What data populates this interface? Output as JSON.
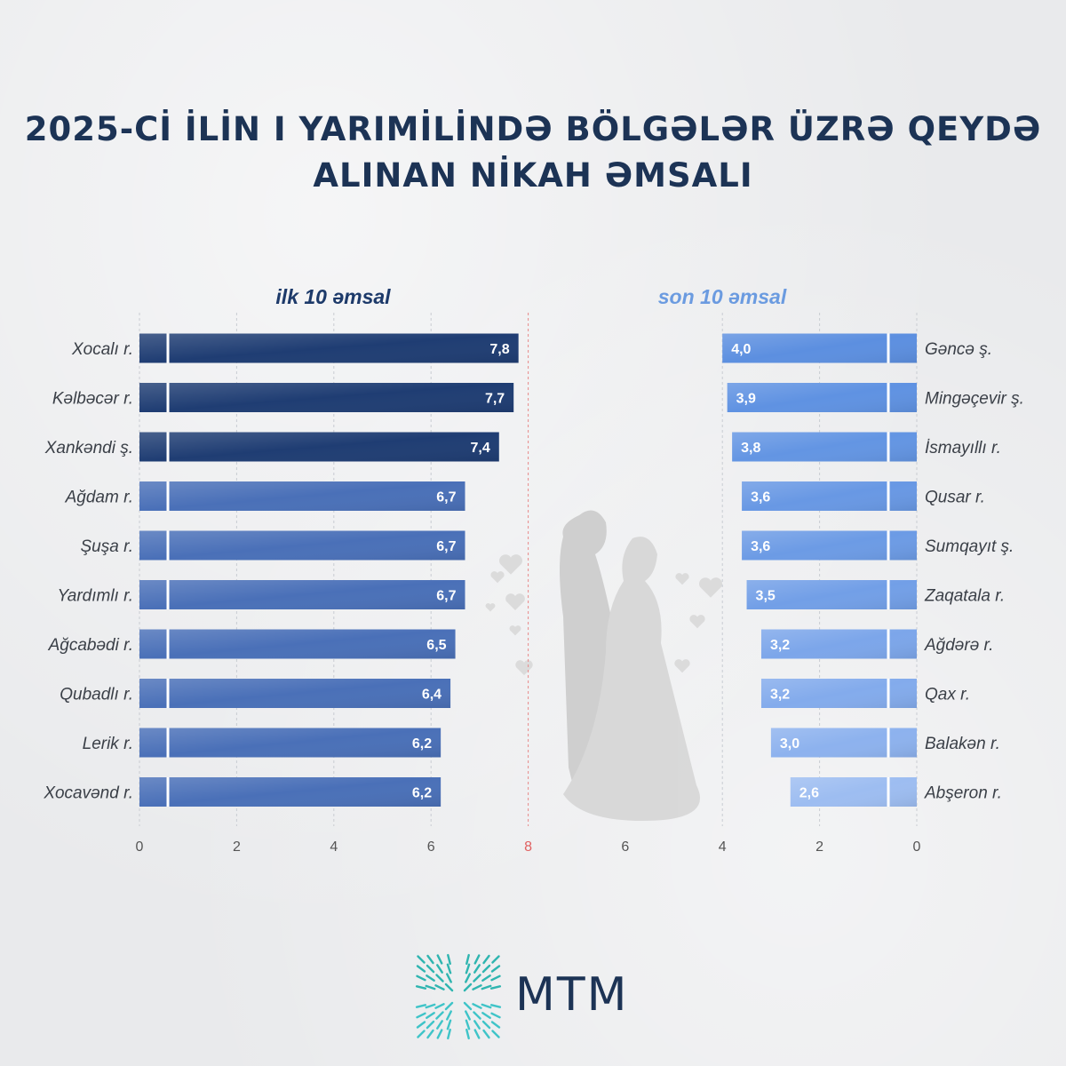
{
  "title_line1": "2025-Cİ İLİN I YARIMİLİNDƏ BÖLGƏLƏR ÜZRƏ QEYDƏ",
  "title_line2": "ALINAN NİKAH ƏMSALI",
  "brand": "MTM",
  "chart_data": [
    {
      "type": "bar",
      "orientation": "horizontal",
      "title": "ilk 10 əmsal",
      "categories": [
        "Xocalı r.",
        "Kəlbəcər r.",
        "Xankəndi ş.",
        "Ağdam r.",
        "Şuşa r.",
        "Yardımlı r.",
        "Ağcabədi r.",
        "Qubadlı r.",
        "Lerik r.",
        "Xocavənd r."
      ],
      "values": [
        7.8,
        7.7,
        7.4,
        6.7,
        6.7,
        6.7,
        6.5,
        6.4,
        6.2,
        6.2
      ],
      "value_labels": [
        "7,8",
        "7,7",
        "7,4",
        "6,7",
        "6,7",
        "6,7",
        "6,5",
        "6,4",
        "6,2",
        "6,2"
      ],
      "xlim": [
        0,
        8
      ],
      "ticks": [
        "0",
        "2",
        "4",
        "6",
        "8"
      ],
      "colors": [
        "#1f3d73",
        "#1f3d73",
        "#1f3d73",
        "#4a70b8",
        "#4a70b8",
        "#4a70b8",
        "#4a70b8",
        "#4a70b8",
        "#4a70b8",
        "#4a70b8"
      ]
    },
    {
      "type": "bar",
      "orientation": "horizontal-reversed",
      "title": "son 10 əmsal",
      "categories": [
        "Gəncə ş.",
        "Mingəçevir ş.",
        "İsmayıllı r.",
        "Qusar r.",
        "Sumqayıt ş.",
        "Zaqatala r.",
        "Ağdərə r.",
        "Qax r.",
        "Balakən r.",
        "Abşeron r."
      ],
      "values": [
        4.0,
        3.9,
        3.8,
        3.6,
        3.6,
        3.5,
        3.2,
        3.2,
        3.0,
        2.6
      ],
      "value_labels": [
        "4,0",
        "3,9",
        "3,8",
        "3,6",
        "3,6",
        "3,5",
        "3,2",
        "3,2",
        "3,0",
        "2,6"
      ],
      "xlim": [
        8,
        0
      ],
      "ticks": [
        "6",
        "4",
        "2",
        "0"
      ],
      "colors": [
        "#5c8fe0",
        "#5f92e2",
        "#6395e3",
        "#6898e4",
        "#6c9be5",
        "#729fe7",
        "#7ca6ea",
        "#83abec",
        "#8db2ee",
        "#9dbdf1"
      ]
    }
  ]
}
